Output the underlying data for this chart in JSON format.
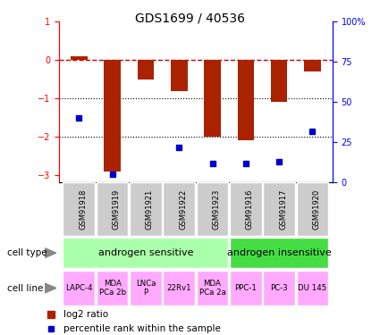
{
  "title": "GDS1699 / 40536",
  "samples": [
    "GSM91918",
    "GSM91919",
    "GSM91921",
    "GSM91922",
    "GSM91923",
    "GSM91916",
    "GSM91917",
    "GSM91920"
  ],
  "log2_ratio": [
    0.1,
    -2.9,
    -0.5,
    -0.8,
    -2.0,
    -2.1,
    -1.1,
    -0.3
  ],
  "percentile_rank": [
    40,
    5,
    null,
    22,
    12,
    12,
    13,
    32
  ],
  "bar_color": "#aa2200",
  "dot_color": "#0000cc",
  "dashed_line_color": "#cc0000",
  "dotted_line_color": "#000000",
  "ylim_left": [
    -3.2,
    1.0
  ],
  "ylim_right": [
    0,
    100
  ],
  "yticks_left": [
    1,
    0,
    -1,
    -2,
    -3
  ],
  "yticks_right": [
    0,
    25,
    50,
    75,
    100
  ],
  "right_tick_labels": [
    "0",
    "25",
    "50",
    "75",
    "100%"
  ],
  "cell_type_groups": [
    {
      "label": "androgen sensitive",
      "start": 0,
      "end": 4,
      "color": "#aaffaa"
    },
    {
      "label": "androgen insensitive",
      "start": 5,
      "end": 7,
      "color": "#44dd44"
    }
  ],
  "cell_lines": [
    "LAPC-4",
    "MDA\nPCa 2b",
    "LNCa\nP",
    "22Rv1",
    "MDA\nPCa 2a",
    "PPC-1",
    "PC-3",
    "DU 145"
  ],
  "cell_line_color": "#ffaaff",
  "sample_bg_color": "#cccccc",
  "cell_type_label": "cell type",
  "cell_line_label": "cell line",
  "legend_log2": "log2 ratio",
  "legend_pct": "percentile rank within the sample",
  "arrow_color": "#888888"
}
